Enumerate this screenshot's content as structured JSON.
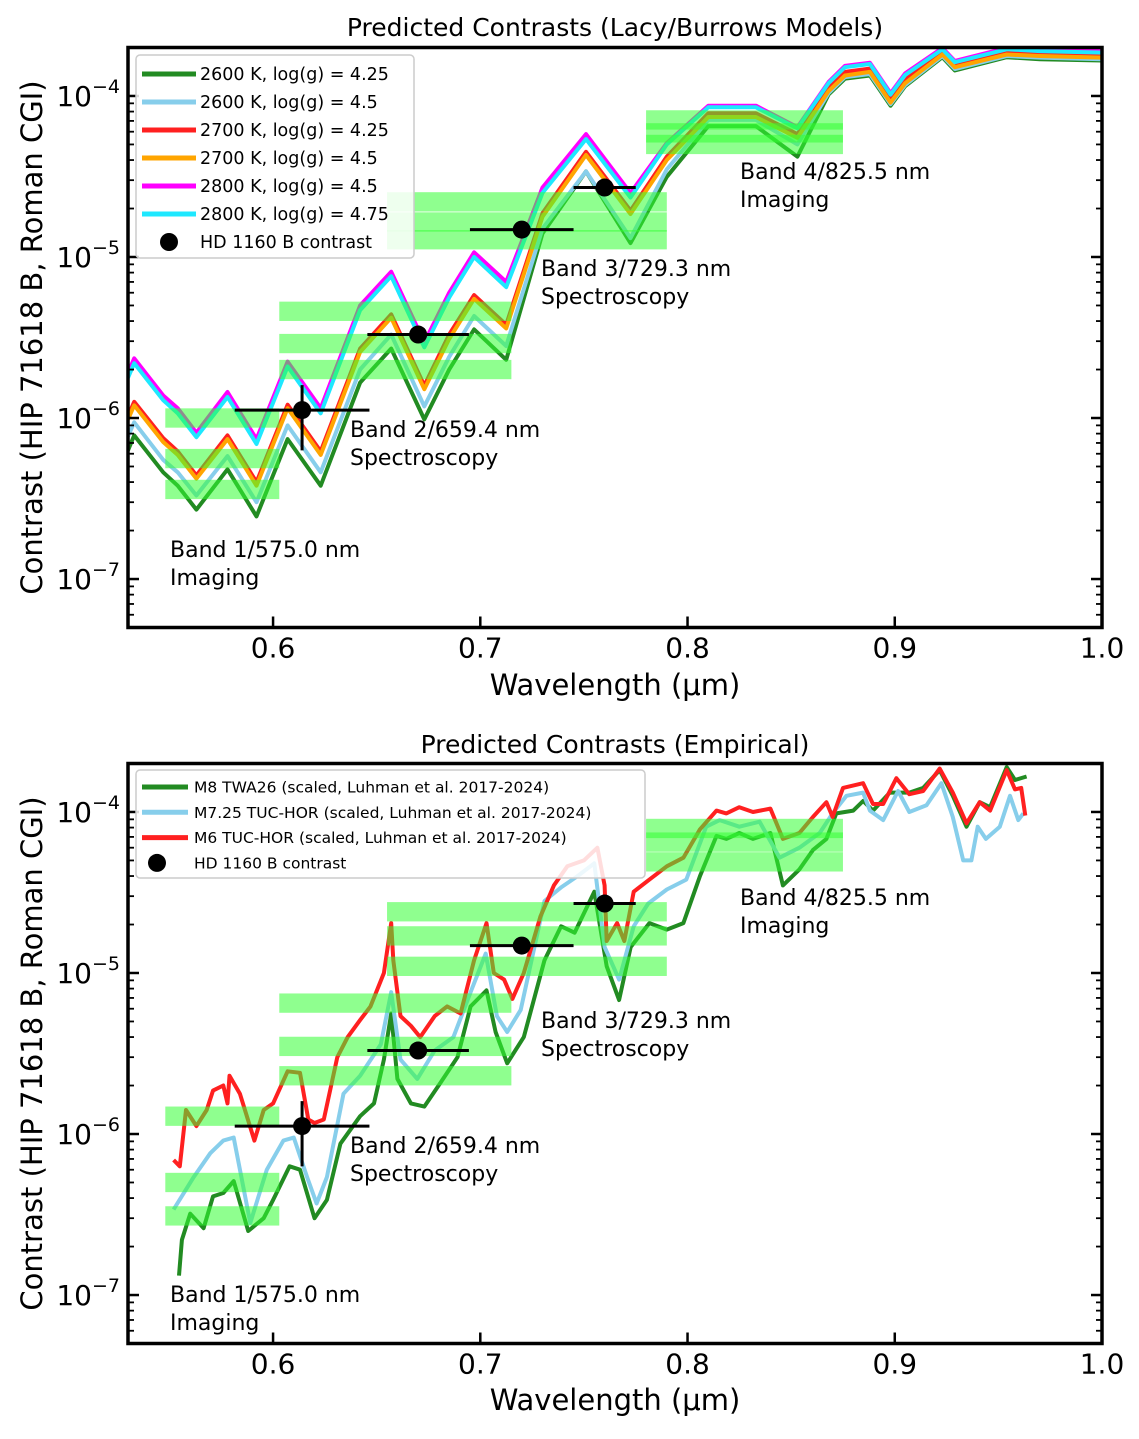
{
  "chart_data": [
    {
      "type": "line",
      "title": "Predicted Contrasts (Lacy/Burrows Models)",
      "xlabel": "Wavelength (μm)",
      "ylabel": "Contrast (HIP 71618 B, Roman CGI)",
      "xlim": [
        0.53,
        1.0
      ],
      "ylim": [
        5e-08,
        0.0002
      ],
      "yscale": "log",
      "grid": false,
      "legend": "upper-left",
      "xticks": [
        0.6,
        0.7,
        0.8,
        0.9,
        1.0
      ],
      "xtick_labels": [
        "0.6",
        "0.7",
        "0.8",
        "0.9",
        "1.0"
      ],
      "yticks": [
        1e-07,
        1e-06,
        1e-05,
        0.0001
      ],
      "ytick_labels": [
        {
          "base": "10",
          "exp": "−7"
        },
        {
          "base": "10",
          "exp": "−6"
        },
        {
          "base": "10",
          "exp": "−5"
        },
        {
          "base": "10",
          "exp": "−4"
        }
      ],
      "x": [
        0.53,
        0.533,
        0.547,
        0.554,
        0.563,
        0.578,
        0.592,
        0.607,
        0.623,
        0.642,
        0.657,
        0.673,
        0.685,
        0.697,
        0.7125,
        0.73,
        0.751,
        0.7725,
        0.79,
        0.81,
        0.833,
        0.853,
        0.868,
        0.876,
        0.888,
        0.898,
        0.905,
        0.923,
        0.929,
        0.954,
        0.97,
        1.0
      ],
      "series": [
        {
          "name": "2600 K, log(g) = 4.25",
          "color": "#228b22",
          "y": [
            6.3e-07,
            7.8e-07,
            4.6e-07,
            3.8e-07,
            2.7e-07,
            4.8e-07,
            2.45e-07,
            7.4e-07,
            3.8e-07,
            1.66e-06,
            2.7e-06,
            9.8e-07,
            2e-06,
            3.55e-06,
            2.3e-06,
            1.4e-05,
            3.4e-05,
            1.22e-05,
            3.15e-05,
            6.5e-05,
            6.5e-05,
            4.2e-05,
            0.000102,
            0.000128,
            0.000134,
            8.7e-05,
            0.000115,
            0.000174,
            0.000144,
            0.000174,
            0.000169,
            0.000166
          ]
        },
        {
          "name": "2600 K, log(g) = 4.5",
          "color": "#87ceeb",
          "y": [
            7.7e-07,
            9.4e-07,
            5.5e-07,
            4.6e-07,
            3.3e-07,
            5.8e-07,
            3e-07,
            9e-07,
            4.6e-07,
            2e-06,
            3.3e-06,
            1.18e-06,
            2.4e-06,
            4.3e-06,
            2.8e-06,
            1.5e-05,
            3.4e-05,
            1.31e-05,
            3.5e-05,
            7.1e-05,
            7.1e-05,
            5e-05,
            0.000104,
            0.000131,
            0.000137,
            8.9e-05,
            0.000117,
            0.000177,
            0.000147,
            0.000177,
            0.000173,
            0.000169
          ]
        },
        {
          "name": "2700 K, log(g) = 4.25",
          "color": "#ff2020",
          "y": [
            1.03e-06,
            1.26e-06,
            7.5e-07,
            6.2e-07,
            4.4e-07,
            7.8e-07,
            4e-07,
            1.21e-06,
            6.2e-07,
            2.7e-06,
            4.4e-06,
            1.59e-06,
            3.3e-06,
            5.8e-06,
            3.8e-06,
            1.87e-05,
            4.5e-05,
            1.94e-05,
            4.2e-05,
            7.8e-05,
            7.8e-05,
            5.8e-05,
            0.000112,
            0.000141,
            0.000148,
            9.6e-05,
            0.000126,
            0.00019,
            0.000159,
            0.00019,
            0.000186,
            0.000182
          ]
        },
        {
          "name": "2700 K, log(g) = 4.5",
          "color": "#ffa500",
          "y": [
            9.8e-07,
            1.2e-06,
            7.1e-07,
            5.9e-07,
            4.2e-07,
            7.4e-07,
            3.8e-07,
            1.15e-06,
            5.9e-07,
            2.57e-06,
            4.2e-06,
            1.51e-06,
            3.1e-06,
            5.5e-06,
            3.6e-06,
            1.78e-05,
            4.3e-05,
            1.85e-05,
            4e-05,
            7.4e-05,
            7.4e-05,
            5.5e-05,
            0.000107,
            0.000134,
            0.000141,
            9.1e-05,
            0.00012,
            0.000181,
            0.000151,
            0.000181,
            0.000177,
            0.000173
          ]
        },
        {
          "name": "2800 K, log(g) = 4.5",
          "color": "#ff00ff",
          "y": [
            1.9e-06,
            2.35e-06,
            1.38e-06,
            1.15e-06,
            8.1e-07,
            1.45e-06,
            7.4e-07,
            2.24e-06,
            1.15e-06,
            5e-06,
            8.1e-06,
            2.95e-06,
            6e-06,
            1.07e-05,
            7e-06,
            2.7e-05,
            5.8e-05,
            2.5e-05,
            5.1e-05,
            8.7e-05,
            8.7e-05,
            6.4e-05,
            0.000122,
            0.000154,
            0.000161,
            0.000104,
            0.000138,
            0.000199,
            0.000165,
            0.000199,
            0.000194,
            0.00019
          ]
        },
        {
          "name": "2800 K, log(g) = 4.75",
          "color": "#1ee8ff",
          "y": [
            1.78e-06,
            2.19e-06,
            1.29e-06,
            1.07e-06,
            7.6e-07,
            1.35e-06,
            6.9e-07,
            2.09e-06,
            1.07e-06,
            4.68e-06,
            7.6e-06,
            2.75e-06,
            5.6e-06,
            1e-05,
            6.5e-06,
            2.5e-05,
            5.4e-05,
            2.34e-05,
            5e-05,
            8.5e-05,
            8.5e-05,
            6.3e-05,
            0.00012,
            0.000151,
            0.000158,
            0.000102,
            0.000135,
            0.000195,
            0.000162,
            0.000195,
            0.00019,
            0.000186
          ]
        }
      ],
      "points": {
        "name": "HD 1160 B contrast",
        "color": "#000000",
        "x": [
          0.614,
          0.67,
          0.72,
          0.76
        ],
        "y": [
          1.12e-06,
          3.3e-06,
          1.48e-05,
          2.7e-05
        ],
        "xerr": [
          0.0325,
          0.0245,
          0.025,
          0.015
        ],
        "ylow": [
          6.3e-07,
          3e-06,
          1.42e-05,
          2.6e-05
        ],
        "yhigh": [
          1.6e-06,
          3.7e-06,
          1.54e-05,
          2.8e-05
        ]
      },
      "bands": [
        {
          "label": "Band 1/575.0 nm",
          "mode": "Imaging",
          "xmin": 0.548,
          "xmax": 0.603,
          "levels": [
            1e-06,
            5.6e-07,
            3.6e-07
          ]
        },
        {
          "label": "Band 2/659.4 nm",
          "mode": "Spectroscopy",
          "xmin": 0.603,
          "xmax": 0.715,
          "levels": [
            4.6e-06,
            2.9e-06,
            2e-06
          ]
        },
        {
          "label": "Band 3/729.3 nm",
          "mode": "Spectroscopy",
          "xmin": 0.655,
          "xmax": 0.79,
          "levels": [
            2.2e-05,
            1.65e-05,
            1.28e-05
          ]
        },
        {
          "label": "Band 4/825.5 nm",
          "mode": "Imaging",
          "xmin": 0.78,
          "xmax": 0.875,
          "levels": [
            7.1e-05,
            5.9e-05,
            5e-05
          ]
        }
      ],
      "band_color": "#33ff33"
    },
    {
      "type": "line",
      "title": "Predicted Contrasts (Empirical)",
      "xlabel": "Wavelength (μm)",
      "ylabel": "Contrast (HIP 71618 B, Roman CGI)",
      "xlim": [
        0.53,
        1.0
      ],
      "ylim": [
        5e-08,
        0.0002
      ],
      "yscale": "log",
      "grid": false,
      "legend": "upper-left",
      "xticks": [
        0.6,
        0.7,
        0.8,
        0.9,
        1.0
      ],
      "xtick_labels": [
        "0.6",
        "0.7",
        "0.8",
        "0.9",
        "1.0"
      ],
      "yticks": [
        1e-07,
        1e-06,
        1e-05,
        0.0001
      ],
      "ytick_labels": [
        {
          "base": "10",
          "exp": "−7"
        },
        {
          "base": "10",
          "exp": "−6"
        },
        {
          "base": "10",
          "exp": "−5"
        },
        {
          "base": "10",
          "exp": "−4"
        }
      ],
      "series": [
        {
          "name": "M8 TWA26 (scaled, Luhman et al. 2017-2024)",
          "color": "#228b22",
          "x": [
            0.5546,
            0.556,
            0.56,
            0.5665,
            0.571,
            0.576,
            0.581,
            0.588,
            0.5955,
            0.6,
            0.608,
            0.613,
            0.62,
            0.626,
            0.6325,
            0.642,
            0.6487,
            0.6535,
            0.657,
            0.66,
            0.6665,
            0.673,
            0.681,
            0.689,
            0.6953,
            0.703,
            0.7074,
            0.713,
            0.721,
            0.731,
            0.739,
            0.7455,
            0.755,
            0.761,
            0.767,
            0.7726,
            0.7816,
            0.79,
            0.798,
            0.806,
            0.814,
            0.8187,
            0.825,
            0.8316,
            0.84,
            0.846,
            0.854,
            0.8605,
            0.867,
            0.8718,
            0.88,
            0.8847,
            0.8895,
            0.8976,
            0.907,
            0.9137,
            0.9217,
            0.928,
            0.9346,
            0.941,
            0.946,
            0.954,
            0.958,
            0.9636
          ],
          "y": [
            1.32e-07,
            2.2e-07,
            3.2e-07,
            2.6e-07,
            4.1e-07,
            4.3e-07,
            5.1e-07,
            2.5e-07,
            3e-07,
            3.9e-07,
            6.3e-07,
            6e-07,
            3e-07,
            3.9e-07,
            8.7e-07,
            1.29e-06,
            1.55e-06,
            2.9e-06,
            5.6e-06,
            2.2e-06,
            1.55e-06,
            1.48e-06,
            2.1e-06,
            3e-06,
            6.2e-06,
            7.8e-06,
            4.3e-06,
            2.75e-06,
            4e-06,
            1.2e-05,
            1.95e-05,
            1.78e-05,
            3.2e-05,
            1.1e-05,
            6.8e-06,
            1.45e-05,
            2.04e-05,
            1.86e-05,
            2.04e-05,
            4e-05,
            7.1e-05,
            6.8e-05,
            7.4e-05,
            6.8e-05,
            7.4e-05,
            3.5e-05,
            4.4e-05,
            5.8e-05,
            6.8e-05,
            9.8e-05,
            0.000102,
            0.000117,
            0.000102,
            0.000132,
            0.000132,
            0.000141,
            0.000182,
            0.000126,
            8.1e-05,
            0.000115,
            0.000107,
            0.00019,
            0.000158,
            0.000166
          ]
        },
        {
          "name": "M7.25 TUC-HOR (scaled, Luhman et al. 2017-2024)",
          "color": "#87ceeb",
          "x": [
            0.552,
            0.5617,
            0.5697,
            0.576,
            0.581,
            0.589,
            0.597,
            0.605,
            0.61,
            0.6164,
            0.621,
            0.626,
            0.634,
            0.642,
            0.652,
            0.657,
            0.6615,
            0.6696,
            0.678,
            0.687,
            0.6953,
            0.7026,
            0.708,
            0.713,
            0.7195,
            0.731,
            0.739,
            0.747,
            0.755,
            0.76,
            0.767,
            0.774,
            0.781,
            0.79,
            0.7994,
            0.809,
            0.8155,
            0.825,
            0.8348,
            0.8444,
            0.854,
            0.8638,
            0.87,
            0.8767,
            0.8847,
            0.888,
            0.8944,
            0.9016,
            0.907,
            0.9153,
            0.9225,
            0.928,
            0.933,
            0.937,
            0.94,
            0.944,
            0.9507,
            0.9556,
            0.9596,
            0.962
          ],
          "y": [
            3.4e-07,
            5.4e-07,
            7.6e-07,
            9.1e-07,
            9.5e-07,
            2.8e-07,
            6e-07,
            9.1e-07,
            9.5e-07,
            5.4e-07,
            3.7e-07,
            5.4e-07,
            1.78e-06,
            2.3e-06,
            3.6e-06,
            7.6e-06,
            2.9e-06,
            2.2e-06,
            3.3e-06,
            4e-06,
            7.6e-06,
            1.32e-05,
            5.4e-06,
            4.3e-06,
            5.9e-06,
            2.8e-05,
            3.4e-05,
            4e-05,
            4.8e-05,
            1.45e-05,
            9.1e-06,
            1.95e-05,
            2.7e-05,
            3.3e-05,
            3.8e-05,
            8.1e-05,
            8.9e-05,
            8.1e-05,
            8.7e-05,
            5.2e-05,
            6e-05,
            7.4e-05,
            9.8e-05,
            0.000126,
            0.000132,
            0.000102,
            8.9e-05,
            0.000135,
            0.0001,
            0.00011,
            0.000151,
            9.3e-05,
            5e-05,
            5e-05,
            8.1e-05,
            6.8e-05,
            8.1e-05,
            0.000126,
            8.9e-05,
            9.8e-05
          ]
        },
        {
          "name": "M6 TUC-HOR (scaled, Luhman et al. 2017-2024)",
          "color": "#ff2020",
          "x": [
            0.552,
            0.555,
            0.558,
            0.563,
            0.568,
            0.571,
            0.576,
            0.578,
            0.579,
            0.584,
            0.591,
            0.5955,
            0.6,
            0.607,
            0.613,
            0.617,
            0.62,
            0.6245,
            0.631,
            0.636,
            0.642,
            0.647,
            0.6535,
            0.657,
            0.658,
            0.6615,
            0.6665,
            0.671,
            0.678,
            0.684,
            0.6905,
            0.697,
            0.703,
            0.7065,
            0.7115,
            0.7155,
            0.721,
            0.729,
            0.7355,
            0.742,
            0.75,
            0.7565,
            0.76,
            0.761,
            0.766,
            0.7695,
            0.774,
            0.7816,
            0.79,
            0.798,
            0.806,
            0.814,
            0.8187,
            0.825,
            0.8316,
            0.84,
            0.846,
            0.854,
            0.8605,
            0.867,
            0.87,
            0.875,
            0.8847,
            0.8895,
            0.8944,
            0.9008,
            0.907,
            0.9137,
            0.9217,
            0.928,
            0.9346,
            0.941,
            0.946,
            0.954,
            0.958,
            0.961,
            0.963
          ],
          "y": [
            6.9e-07,
            6.3e-07,
            1.41e-06,
            1.12e-06,
            1.41e-06,
            1.86e-06,
            2e-06,
            1.55e-06,
            2.3e-06,
            1.78e-06,
            9.1e-07,
            1.41e-06,
            1.55e-06,
            2.45e-06,
            2.4e-06,
            1.23e-06,
            1.17e-06,
            1.23e-06,
            3e-06,
            4e-06,
            5.1e-06,
            6.2e-06,
            1e-05,
            2.04e-05,
            1.2e-05,
            5.4e-06,
            4.7e-06,
            4e-06,
            5.4e-06,
            6.2e-06,
            5.6e-06,
            1.2e-05,
            2.04e-05,
            1e-05,
            9.1e-06,
            6.9e-06,
            1e-05,
            2.24e-05,
            3.5e-05,
            4.6e-05,
            5e-05,
            6e-05,
            3.5e-05,
            1.58e-05,
            2.04e-05,
            1.58e-05,
            3.2e-05,
            3.8e-05,
            4.6e-05,
            5.2e-05,
            7.8e-05,
            0.000102,
            9.8e-05,
            0.000107,
            0.0001,
            0.000105,
            6.8e-05,
            7.4e-05,
            9.3e-05,
            0.000115,
            9.3e-05,
            0.000141,
            0.000151,
            0.000112,
            0.000112,
            0.000162,
            0.000129,
            0.000135,
            0.000186,
            0.000132,
            8.5e-05,
            0.000115,
            0.000102,
            0.000182,
            0.000138,
            0.000141,
            9.5e-05
          ]
        }
      ],
      "points": {
        "name": "HD 1160 B contrast",
        "color": "#000000",
        "x": [
          0.614,
          0.67,
          0.72,
          0.76
        ],
        "y": [
          1.12e-06,
          3.3e-06,
          1.48e-05,
          2.7e-05
        ],
        "xerr": [
          0.0325,
          0.0245,
          0.025,
          0.015
        ],
        "ylow": [
          6.3e-07,
          3e-06,
          1.42e-05,
          2.6e-05
        ],
        "yhigh": [
          1.6e-06,
          3.7e-06,
          1.54e-05,
          2.8e-05
        ]
      },
      "bands": [
        {
          "label": "Band 1/575.0 nm",
          "mode": "Imaging",
          "xmin": 0.548,
          "xmax": 0.603,
          "levels": [
            1.29e-06,
            5e-07,
            3.1e-07
          ]
        },
        {
          "label": "Band 2/659.4 nm",
          "mode": "Spectroscopy",
          "xmin": 0.603,
          "xmax": 0.715,
          "levels": [
            6.5e-06,
            3.5e-06,
            2.3e-06
          ]
        },
        {
          "label": "Band 3/729.3 nm",
          "mode": "Spectroscopy",
          "xmin": 0.655,
          "xmax": 0.79,
          "levels": [
            2.4e-05,
            1.7e-05,
            1.1e-05
          ]
        },
        {
          "label": "Band 4/825.5 nm",
          "mode": "Imaging",
          "xmin": 0.78,
          "xmax": 0.875,
          "levels": [
            7.9e-05,
            6.5e-05,
            4.9e-05
          ]
        }
      ],
      "band_color": "#33ff33"
    }
  ]
}
